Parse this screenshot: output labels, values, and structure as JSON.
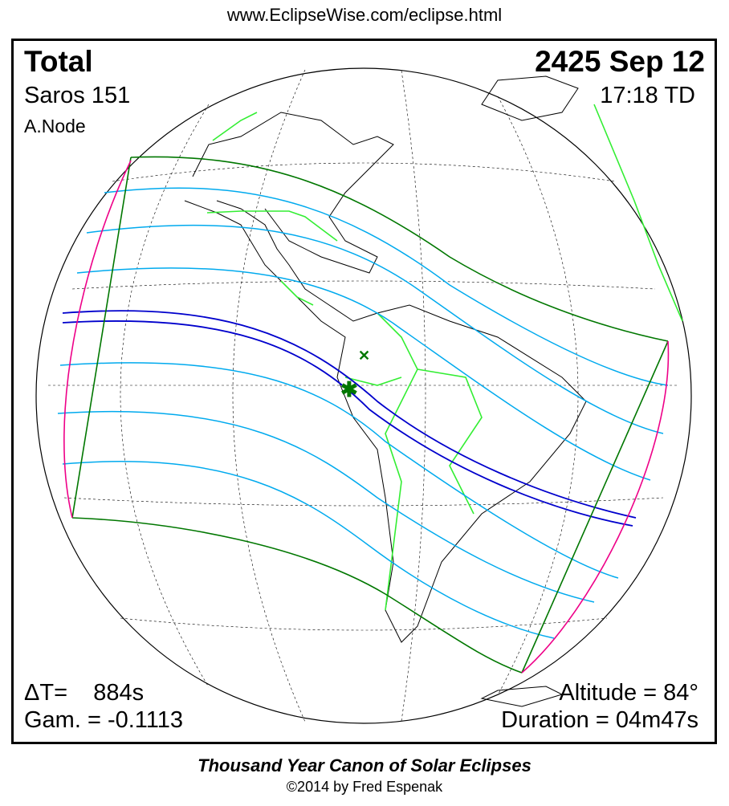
{
  "header": {
    "url": "www.EclipseWise.com/eclipse.html"
  },
  "eclipse": {
    "type": "Total",
    "date": "2425 Sep 12",
    "saros": "Saros 151",
    "time": "17:18 TD",
    "node": "A.Node",
    "delta_t": "ΔT=    884s",
    "gamma": "Gam. = -0.1113",
    "altitude": "Altitude = 84°",
    "duration": "Duration = 04m47s"
  },
  "footer": {
    "title": "Thousand Year Canon of Solar Eclipses",
    "copyright": "©2014 by Fred Espenak"
  },
  "colors": {
    "umbra_path": "#0000cc",
    "penumbra_lines": "#00aaee",
    "penumbra_limits": "#007700",
    "rise_set_curves": "#ee0088",
    "borders": "#33ee33",
    "coastlines": "#000000"
  },
  "markers": {
    "greatest_eclipse": "star-icon",
    "subsolar_point": "x-icon"
  }
}
